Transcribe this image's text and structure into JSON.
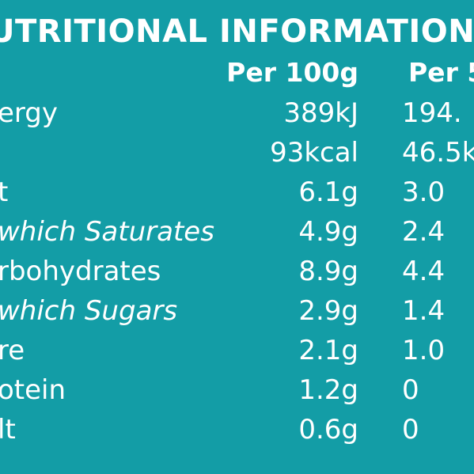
{
  "title": "NUTRITIONAL INFORMATION",
  "title_visible": "UTRITIONAL INFORMATION",
  "headers": {
    "per_100g": "Per 100g",
    "per_portion_visible": "Per 5"
  },
  "rows": [
    {
      "label_visible": "ergy",
      "per_100g": "389kJ",
      "per_portion_visible": "194."
    },
    {
      "label_visible": "",
      "per_100g": "93kcal",
      "per_portion_visible": "46.5k"
    },
    {
      "label_visible": "t",
      "per_100g": "6.1g",
      "per_portion_visible": "3.0"
    },
    {
      "label_visible": "which Saturates",
      "per_100g": "4.9g",
      "per_portion_visible": "2.4"
    },
    {
      "label_visible": "rbohydrates",
      "per_100g": "8.9g",
      "per_portion_visible": "4.4"
    },
    {
      "label_visible": "which Sugars",
      "per_100g": "2.9g",
      "per_portion_visible": "1.4"
    },
    {
      "label_visible": "re",
      "per_100g": "2.1g",
      "per_portion_visible": "1.0"
    },
    {
      "label_visible": "otein",
      "per_100g": "1.2g",
      "per_portion_visible": "0"
    },
    {
      "label_visible": "lt",
      "per_100g": "0.6g",
      "per_portion_visible": "0"
    }
  ],
  "colors": {
    "background": "#139da6",
    "text": "#ffffff"
  }
}
